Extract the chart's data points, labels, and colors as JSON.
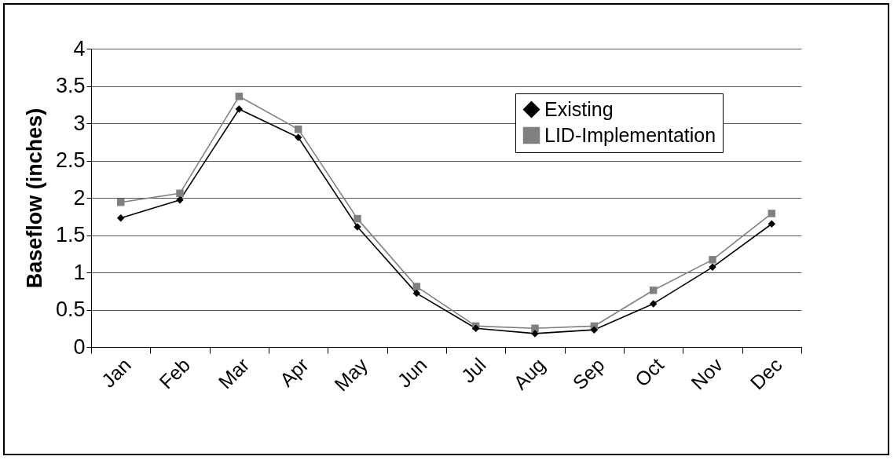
{
  "chart_data": {
    "type": "line",
    "ylabel": "Baseflow (inches)",
    "categories": [
      "Jan",
      "Feb",
      "Mar",
      "Apr",
      "May",
      "Jun",
      "Jul",
      "Aug",
      "Sep",
      "Oct",
      "Nov",
      "Dec"
    ],
    "series": [
      {
        "name": "Existing",
        "color": "#000000",
        "marker": "diamond",
        "values": [
          1.73,
          1.97,
          3.19,
          2.81,
          1.61,
          0.72,
          0.25,
          0.18,
          0.23,
          0.58,
          1.07,
          1.65
        ]
      },
      {
        "name": "LID-Implementation",
        "color": "#808080",
        "marker": "square",
        "values": [
          1.94,
          2.06,
          3.36,
          2.92,
          1.72,
          0.81,
          0.28,
          0.25,
          0.28,
          0.76,
          1.17,
          1.79
        ]
      }
    ],
    "ylim": [
      0,
      4
    ],
    "yticks": [
      0,
      0.5,
      1,
      1.5,
      2,
      2.5,
      3,
      3.5,
      4
    ],
    "grid": "y",
    "legend": "top right"
  }
}
